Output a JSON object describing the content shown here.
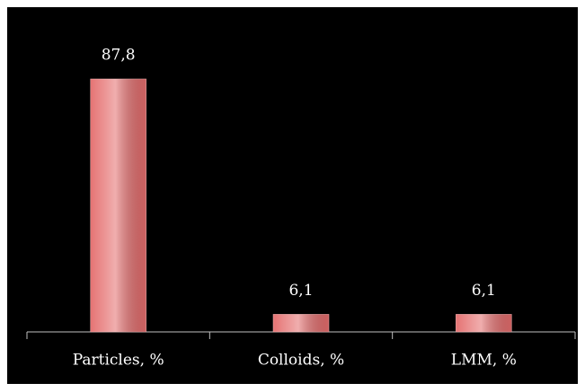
{
  "chart_data": {
    "type": "bar",
    "categories": [
      "Particles, %",
      "Colloids, %",
      "LMM, %"
    ],
    "values": [
      87.8,
      6.1,
      6.1
    ],
    "value_labels": [
      "87,8",
      "6,1",
      "6,1"
    ],
    "color": "#e46c6c"
  }
}
